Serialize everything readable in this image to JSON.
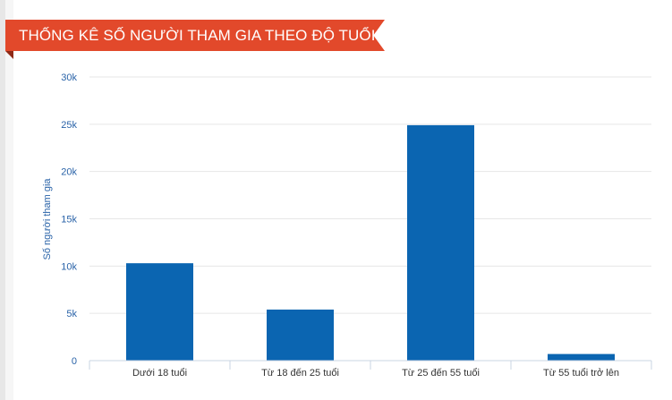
{
  "header": {
    "title": "THỐNG KÊ SỐ NGƯỜI THAM GIA THEO ĐỘ TUỔI"
  },
  "colors": {
    "banner": "#e2492b",
    "bar": "#0b65b1",
    "tick_label": "#2a63a8",
    "grid": "#e6e6e6"
  },
  "chart_data": {
    "type": "bar",
    "title": "",
    "xlabel": "",
    "ylabel": "Số người tham gia",
    "categories": [
      "Dưới 18 tuổi",
      "Từ 18 đến 25 tuổi",
      "Từ 25 đến 55 tuổi",
      "Từ 55 tuổi trở lên"
    ],
    "values": [
      10300,
      5400,
      24900,
      700
    ],
    "ylim": [
      0,
      30000
    ],
    "yticks": [
      0,
      5000,
      10000,
      15000,
      20000,
      25000,
      30000
    ],
    "ytick_labels": [
      "0",
      "5k",
      "10k",
      "15k",
      "20k",
      "25k",
      "30k"
    ],
    "grid": true,
    "legend": "none"
  }
}
